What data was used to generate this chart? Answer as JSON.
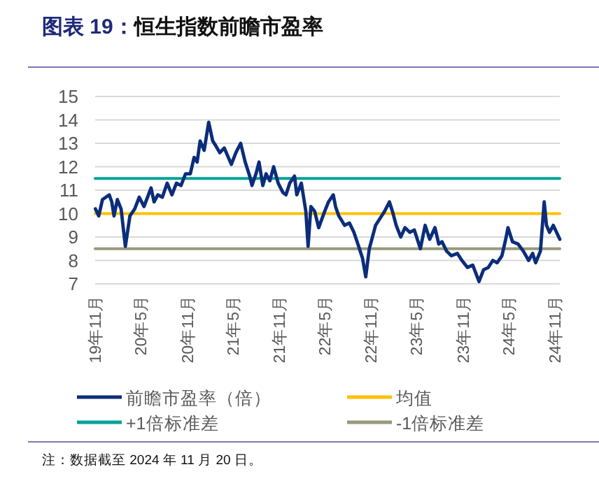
{
  "chart_data": {
    "type": "line",
    "title": "图表 19：恒生指数前瞻市盈率",
    "ylim": [
      7,
      15
    ],
    "yticks": [
      7,
      8,
      9,
      10,
      11,
      12,
      13,
      14,
      15
    ],
    "xlim": [
      "2019-11-01",
      "2024-11-20"
    ],
    "xticks": [
      {
        "value": "2019-11-01",
        "label": "19年11月"
      },
      {
        "value": "2020-05-01",
        "label": "20年5月"
      },
      {
        "value": "2020-11-01",
        "label": "20年11月"
      },
      {
        "value": "2021-05-01",
        "label": "21年5月"
      },
      {
        "value": "2021-11-01",
        "label": "21年11月"
      },
      {
        "value": "2022-05-01",
        "label": "22年5月"
      },
      {
        "value": "2022-11-01",
        "label": "22年11月"
      },
      {
        "value": "2023-05-01",
        "label": "23年5月"
      },
      {
        "value": "2023-11-01",
        "label": "23年11月"
      },
      {
        "value": "2024-05-01",
        "label": "24年5月"
      },
      {
        "value": "2024-11-01",
        "label": "24年11月"
      }
    ],
    "grid": "y",
    "legend": "bottom",
    "series": [
      {
        "name": "前瞻市盈率（倍）",
        "color": "#0b2d7a",
        "x": [
          "2019-11-02",
          "2019-11-15",
          "2019-11-30",
          "2019-12-27",
          "2020-01-06",
          "2020-01-15",
          "2020-01-28",
          "2020-02-12",
          "2020-02-29",
          "2020-03-18",
          "2020-04-06",
          "2020-04-24",
          "2020-05-13",
          "2020-05-27",
          "2020-06-10",
          "2020-06-22",
          "2020-07-07",
          "2020-07-25",
          "2020-08-13",
          "2020-09-01",
          "2020-09-19",
          "2020-10-07",
          "2020-10-25",
          "2020-11-13",
          "2020-11-28",
          "2020-12-10",
          "2020-12-22",
          "2021-01-07",
          "2021-01-25",
          "2021-02-10",
          "2021-02-22",
          "2021-03-10",
          "2021-03-28",
          "2021-04-25",
          "2021-05-13",
          "2021-06-01",
          "2021-06-19",
          "2021-07-07",
          "2021-07-16",
          "2021-08-01",
          "2021-08-13",
          "2021-08-28",
          "2021-09-10",
          "2021-09-25",
          "2021-10-10",
          "2021-10-28",
          "2021-11-16",
          "2021-11-28",
          "2021-12-13",
          "2022-01-01",
          "2022-01-10",
          "2022-01-28",
          "2022-02-15",
          "2022-02-24",
          "2022-03-07",
          "2022-03-22",
          "2022-04-07",
          "2022-05-01",
          "2022-05-16",
          "2022-06-04",
          "2022-06-13",
          "2022-06-26",
          "2022-07-19",
          "2022-08-07",
          "2022-08-25",
          "2022-09-13",
          "2022-09-28",
          "2022-10-11",
          "2022-10-25",
          "2022-11-19",
          "2022-12-07",
          "2022-12-25",
          "2023-01-13",
          "2023-01-25",
          "2023-02-09",
          "2023-02-27",
          "2023-03-16",
          "2023-04-04",
          "2023-04-22",
          "2023-05-16",
          "2023-06-04",
          "2023-06-22",
          "2023-07-13",
          "2023-07-28",
          "2023-08-10",
          "2023-08-28",
          "2023-09-16",
          "2023-10-10",
          "2023-10-28",
          "2023-11-19",
          "2023-12-10",
          "2024-01-04",
          "2024-01-22",
          "2024-02-10",
          "2024-02-28",
          "2024-03-16",
          "2024-04-04",
          "2024-04-19",
          "2024-04-28",
          "2024-05-16",
          "2024-06-07",
          "2024-06-28",
          "2024-07-19",
          "2024-08-04",
          "2024-08-16",
          "2024-09-04",
          "2024-09-19",
          "2024-09-28",
          "2024-10-10",
          "2024-10-25",
          "2024-11-20"
        ],
        "values": [
          10.2,
          9.9,
          10.6,
          10.8,
          10.5,
          9.9,
          10.6,
          10.2,
          8.6,
          9.9,
          10.2,
          10.7,
          10.3,
          10.7,
          11.1,
          10.5,
          10.8,
          10.7,
          11.3,
          10.8,
          11.3,
          11.2,
          11.7,
          11.7,
          12.4,
          12.2,
          13.1,
          12.7,
          13.9,
          13.1,
          12.9,
          12.6,
          12.8,
          12.1,
          12.6,
          13.0,
          12.2,
          11.6,
          11.2,
          11.7,
          12.2,
          11.2,
          11.7,
          11.4,
          12.0,
          11.3,
          10.9,
          10.8,
          11.3,
          11.6,
          10.8,
          11.3,
          10.1,
          8.6,
          10.3,
          10.1,
          9.4,
          10.1,
          10.5,
          10.8,
          10.3,
          9.9,
          9.5,
          9.6,
          9.2,
          8.6,
          8.1,
          7.3,
          8.5,
          9.5,
          9.8,
          10.1,
          10.5,
          10.1,
          9.5,
          9.0,
          9.4,
          9.2,
          9.3,
          8.5,
          9.5,
          8.9,
          9.4,
          8.7,
          8.8,
          8.4,
          8.2,
          8.3,
          8.0,
          7.7,
          7.8,
          7.1,
          7.6,
          7.7,
          8.0,
          7.9,
          8.2,
          8.9,
          9.4,
          8.8,
          8.7,
          8.4,
          8.0,
          8.3,
          7.9,
          8.4,
          10.5,
          9.5,
          9.2,
          9.5,
          8.9
        ]
      },
      {
        "name": "均值",
        "color": "#ffc000",
        "x": [
          "2019-11-01",
          "2024-11-20"
        ],
        "values": [
          10.0,
          10.0
        ]
      },
      {
        "name": "+1倍标准差",
        "color": "#00a19a",
        "x": [
          "2019-11-01",
          "2024-11-20"
        ],
        "values": [
          11.5,
          11.5
        ]
      },
      {
        "name": "-1倍标准差",
        "color": "#99987a",
        "x": [
          "2019-11-01",
          "2024-11-20"
        ],
        "values": [
          8.5,
          8.5
        ]
      }
    ],
    "annotations": [
      "注：数据截至 2024 年 11 月 20 日。"
    ]
  }
}
